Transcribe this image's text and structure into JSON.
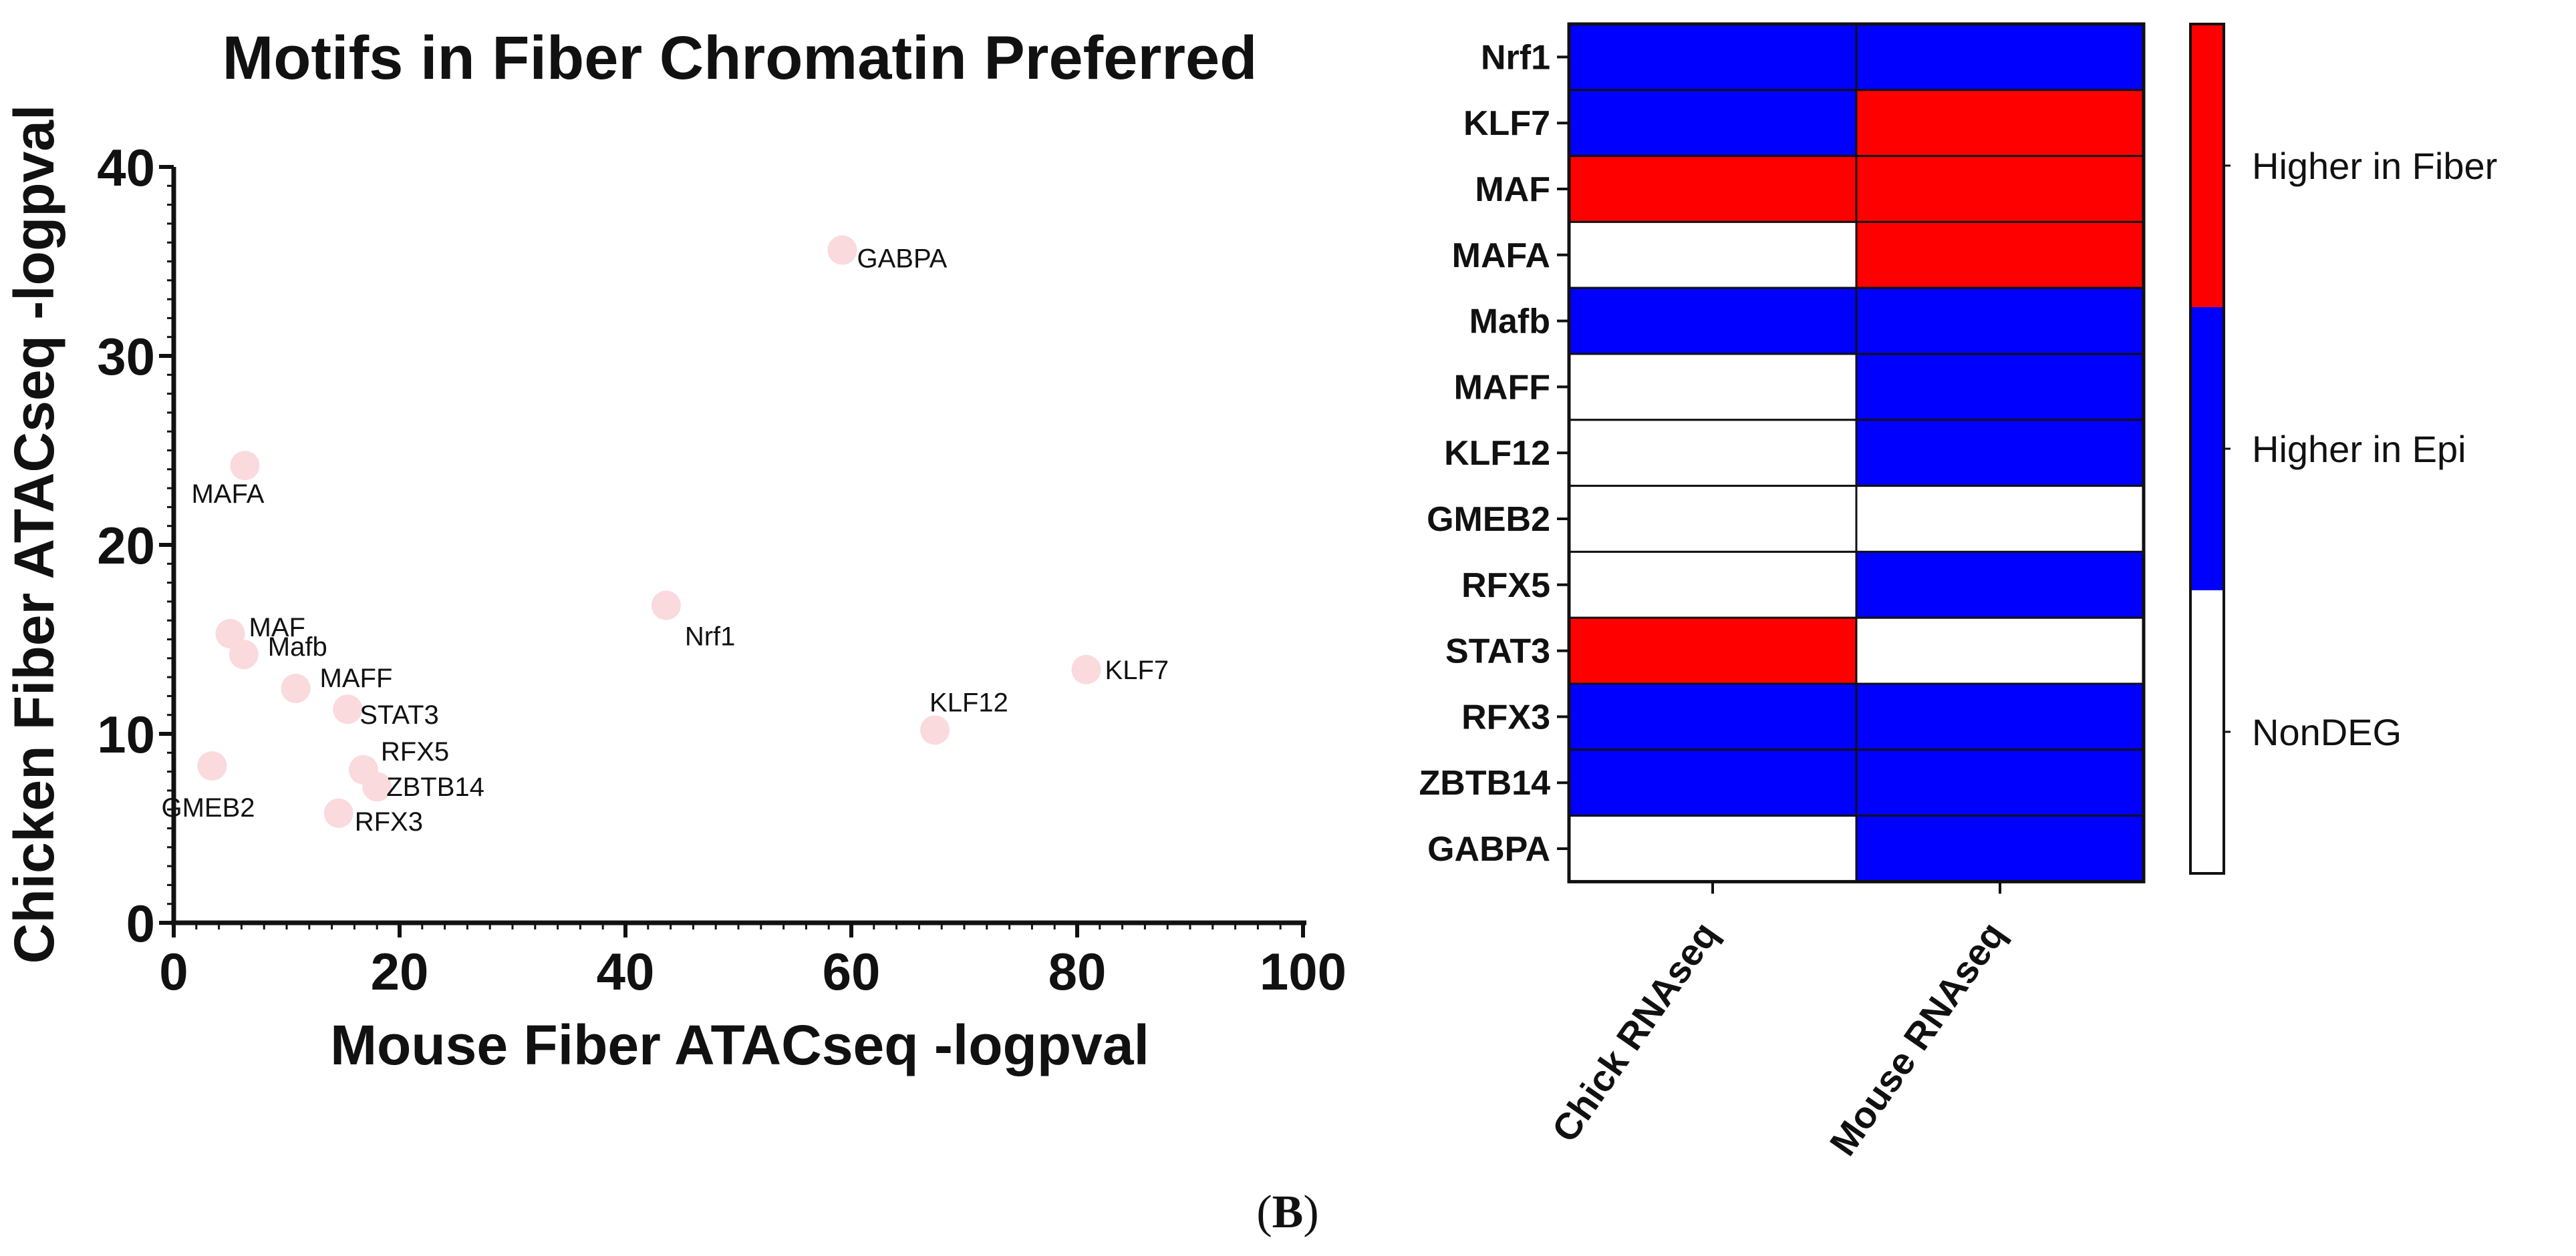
{
  "chart_data": [
    {
      "type": "scatter",
      "title": "Motifs in Fiber Chromatin Preferred",
      "xlabel": "Mouse Fiber ATACseq -logpval",
      "ylabel": "Chicken Fiber ATACseq -logpval",
      "xlim": [
        0,
        100
      ],
      "ylim": [
        0,
        40
      ],
      "xticks": [
        0,
        20,
        40,
        60,
        80,
        100
      ],
      "yticks": [
        0,
        10,
        20,
        30,
        40
      ],
      "grid": false,
      "point_color": "#fadadd",
      "points": [
        {
          "label": "GABPA",
          "x": 59.2,
          "y": 35.6
        },
        {
          "label": "MAFA",
          "x": 6.3,
          "y": 24.2
        },
        {
          "label": "Nrf1",
          "x": 43.6,
          "y": 16.8
        },
        {
          "label": "MAF",
          "x": 5.0,
          "y": 15.3
        },
        {
          "label": "Mafb",
          "x": 6.2,
          "y": 14.2
        },
        {
          "label": "KLF7",
          "x": 80.8,
          "y": 13.4
        },
        {
          "label": "MAFF",
          "x": 10.8,
          "y": 12.4
        },
        {
          "label": "STAT3",
          "x": 15.4,
          "y": 11.3
        },
        {
          "label": "KLF12",
          "x": 67.4,
          "y": 10.2
        },
        {
          "label": "GMEB2",
          "x": 3.4,
          "y": 8.3
        },
        {
          "label": "RFX5",
          "x": 16.8,
          "y": 8.1
        },
        {
          "label": "ZBTB14",
          "x": 18.0,
          "y": 7.2
        },
        {
          "label": "RFX3",
          "x": 14.6,
          "y": 5.8
        }
      ]
    },
    {
      "type": "heatmap",
      "rows": [
        "Nrf1",
        "KLF7",
        "MAF",
        "MAFA",
        "Mafb",
        "MAFF",
        "KLF12",
        "GMEB2",
        "RFX5",
        "STAT3",
        "RFX3",
        "ZBTB14",
        "GABPA"
      ],
      "columns": [
        "Chick RNAseq",
        "Mouse RNAseq"
      ],
      "values": [
        [
          "Epi",
          "Epi"
        ],
        [
          "Epi",
          "Fiber"
        ],
        [
          "Fiber",
          "Fiber"
        ],
        [
          "NonDEG",
          "Fiber"
        ],
        [
          "Epi",
          "Epi"
        ],
        [
          "NonDEG",
          "Epi"
        ],
        [
          "NonDEG",
          "Epi"
        ],
        [
          "NonDEG",
          "NonDEG"
        ],
        [
          "NonDEG",
          "Epi"
        ],
        [
          "Fiber",
          "NonDEG"
        ],
        [
          "Epi",
          "Epi"
        ],
        [
          "Epi",
          "Epi"
        ],
        [
          "NonDEG",
          "Epi"
        ]
      ],
      "legend": [
        {
          "key": "Fiber",
          "label": "Higher in Fiber",
          "color": "#ff0000"
        },
        {
          "key": "Epi",
          "label": "Higher in Epi",
          "color": "#0000ff"
        },
        {
          "key": "NonDEG",
          "label": "NonDEG",
          "color": "#ffffff"
        }
      ]
    }
  ],
  "caption": {
    "open": "(",
    "letter": "B",
    "close": ")"
  }
}
